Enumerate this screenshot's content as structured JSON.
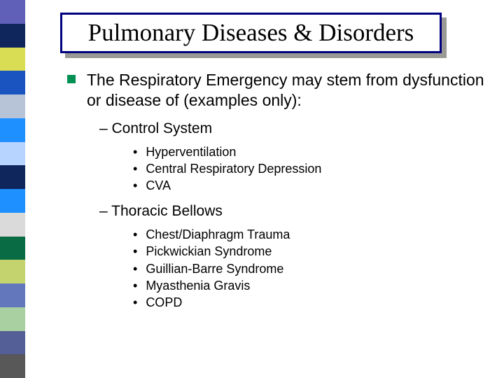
{
  "sidebar": {
    "colors": [
      "#6060b9",
      "#0e265c",
      "#d9dd53",
      "#1a54c0",
      "#b7c3d6",
      "#1e90ff",
      "#b7d3ff",
      "#0e265c",
      "#1e90ff",
      "#dadada",
      "#096b43",
      "#c5d36f",
      "#6378bc",
      "#a8d0a0",
      "#545e97",
      "#585858"
    ]
  },
  "title": "Pulmonary Diseases & Disorders",
  "intro": "The Respiratory Emergency may stem from dysfunction or disease of (examples only):",
  "sections": [
    {
      "heading": "– Control System",
      "items": [
        "Hyperventilation",
        "Central Respiratory Depression",
        "CVA"
      ]
    },
    {
      "heading": "– Thoracic Bellows",
      "items": [
        "Chest/Diaphragm Trauma",
        "Pickwickian Syndrome",
        "Guillian-Barre Syndrome",
        "Myasthenia Gravis",
        "COPD"
      ]
    }
  ]
}
